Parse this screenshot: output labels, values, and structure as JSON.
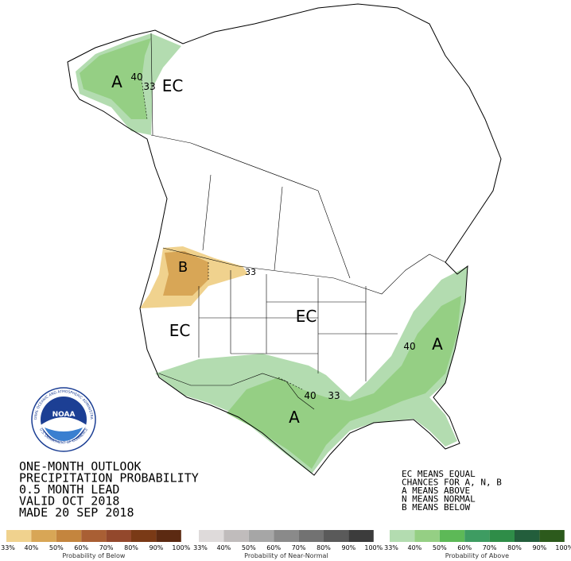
{
  "region_labels": [
    "A",
    "40",
    "33",
    "EC",
    "B",
    "33",
    "EC",
    "EC",
    "40",
    "A",
    "40",
    "33",
    "A"
  ],
  "title_lines": [
    "ONE-MONTH OUTLOOK",
    "PRECIPITATION PROBABILITY",
    "0.5 MONTH LEAD",
    "VALID OCT 2018",
    "MADE 20 SEP 2018"
  ],
  "notes": [
    "EC MEANS EQUAL",
    "CHANCES FOR A, N, B",
    "A MEANS ABOVE",
    "N MEANS NORMAL",
    "B MEANS BELOW"
  ],
  "logo": {
    "name": "NOAA",
    "ring_top": "NATIONAL OCEANIC AND ATMOSPHERIC ADMINISTRATION",
    "ring_bottom": "U.S. DEPARTMENT OF COMMERCE"
  },
  "legend": [
    {
      "title": "Probability of Below",
      "colors": [
        "#f0d28e",
        "#d8a656",
        "#c4853e",
        "#a95f34",
        "#93482c",
        "#7a3a16",
        "#5c2a12"
      ],
      "labels": [
        "33%",
        "40%",
        "50%",
        "60%",
        "70%",
        "80%",
        "90%",
        "100%"
      ]
    },
    {
      "title": "Probability of Near-Normal",
      "colors": [
        "#dedada",
        "#c0bcbc",
        "#a6a6a6",
        "#8a8a8a",
        "#727272",
        "#5a5a5a",
        "#3c3c3c"
      ],
      "labels": [
        "33%",
        "40%",
        "50%",
        "60%",
        "70%",
        "80%",
        "90%",
        "100%"
      ]
    },
    {
      "title": "Probability of Above",
      "colors": [
        "#b3dcb0",
        "#95cf84",
        "#5db957",
        "#3e9c62",
        "#2f8d48",
        "#235e3c",
        "#2c5a1c"
      ],
      "labels": [
        "33%",
        "40%",
        "50%",
        "60%",
        "70%",
        "80%",
        "90%",
        "100%"
      ]
    }
  ]
}
